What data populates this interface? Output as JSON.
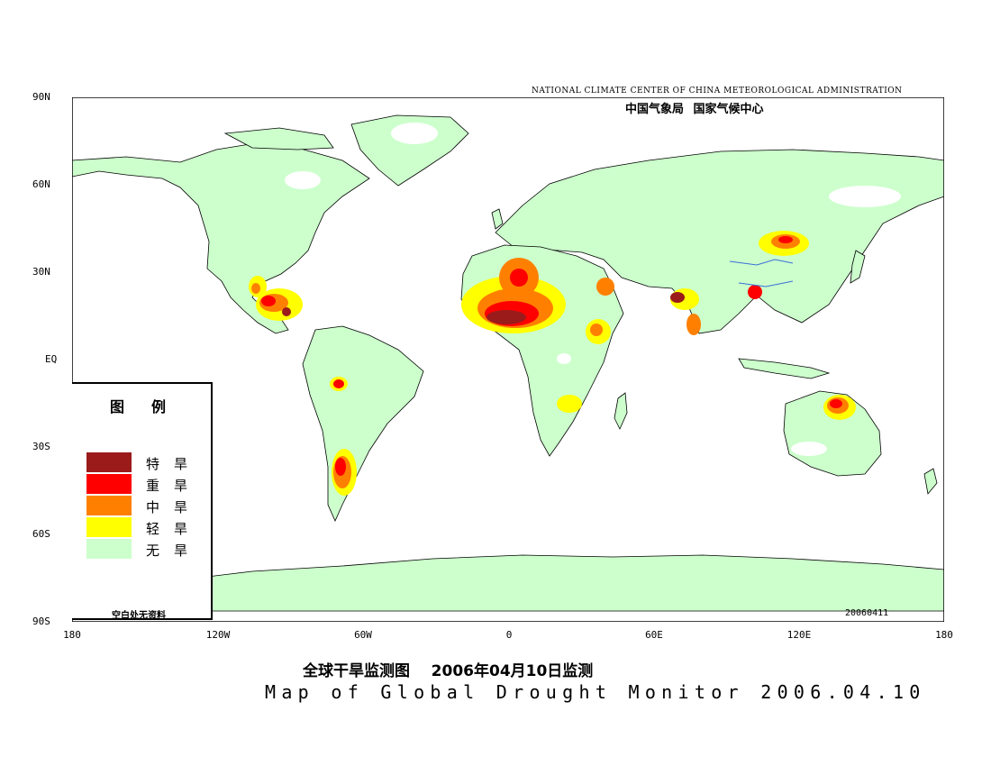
{
  "credit_en": "NATIONAL CLIMATE CENTER OF CHINA METEOROLOGICAL ADMINISTRATION",
  "credit_zh": "中国气象局 国家气候中心",
  "date_stamp": "20060411",
  "lat_labels": [
    "90N",
    "60N",
    "30N",
    "EQ",
    "30S",
    "60S",
    "90S"
  ],
  "lon_labels": [
    "180",
    "120W",
    "60W",
    "0",
    "60E",
    "120E",
    "180"
  ],
  "legend": {
    "title": "图例",
    "items": [
      {
        "label": "特旱",
        "color": "#9b1b1b"
      },
      {
        "label": "重旱",
        "color": "#ff0000"
      },
      {
        "label": "中旱",
        "color": "#ff8000"
      },
      {
        "label": "轻旱",
        "color": "#ffff00"
      },
      {
        "label": "无旱",
        "color": "#ccffcc"
      }
    ],
    "note": "空白处无资料"
  },
  "title_zh": "全球干旱监测图    2006年04月10日监测",
  "title_en": "Map of Global Drought Monitor 2006.04.10",
  "colors": {
    "land": "#ccffcc",
    "ocean": "#ffffff",
    "coast": "#000000",
    "river": "#3a6fd8",
    "no_data": "#ffffff"
  }
}
